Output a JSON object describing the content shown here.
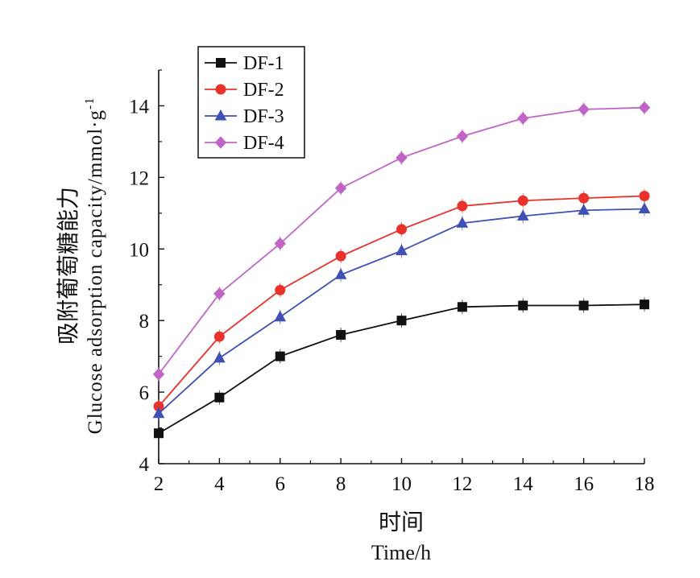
{
  "chart_data": {
    "type": "line",
    "title": "",
    "xlabel_cn": "时间",
    "xlabel": "Time/h",
    "ylabel_cn": "吸附葡萄糖能力",
    "ylabel": "Glucose adsorption capacity/mmol·g",
    "ylabel_sup": "-1",
    "x": [
      2,
      4,
      6,
      8,
      10,
      12,
      14,
      16,
      18
    ],
    "xlim": [
      2,
      18
    ],
    "ylim": [
      4,
      15
    ],
    "xticks": [
      2,
      4,
      6,
      8,
      10,
      12,
      14,
      16,
      18
    ],
    "yticks": [
      4,
      6,
      8,
      10,
      12,
      14
    ],
    "grid": false,
    "legend": "top-left",
    "series": [
      {
        "name": "DF-1",
        "color": "#111111",
        "marker": "square",
        "values": [
          4.85,
          5.85,
          7.0,
          7.6,
          8.0,
          8.38,
          8.42,
          8.42,
          8.45
        ]
      },
      {
        "name": "DF-2",
        "color": "#e8322b",
        "marker": "circle",
        "values": [
          5.6,
          7.55,
          8.85,
          9.8,
          10.55,
          11.2,
          11.35,
          11.42,
          11.48
        ]
      },
      {
        "name": "DF-3",
        "color": "#3f51b5",
        "marker": "triangle",
        "values": [
          5.4,
          6.95,
          8.1,
          9.28,
          9.95,
          10.72,
          10.92,
          11.08,
          11.12
        ]
      },
      {
        "name": "DF-4",
        "color": "#c065c7",
        "marker": "diamond",
        "values": [
          6.5,
          8.75,
          10.15,
          11.7,
          12.55,
          13.15,
          13.65,
          13.9,
          13.95
        ]
      }
    ]
  }
}
